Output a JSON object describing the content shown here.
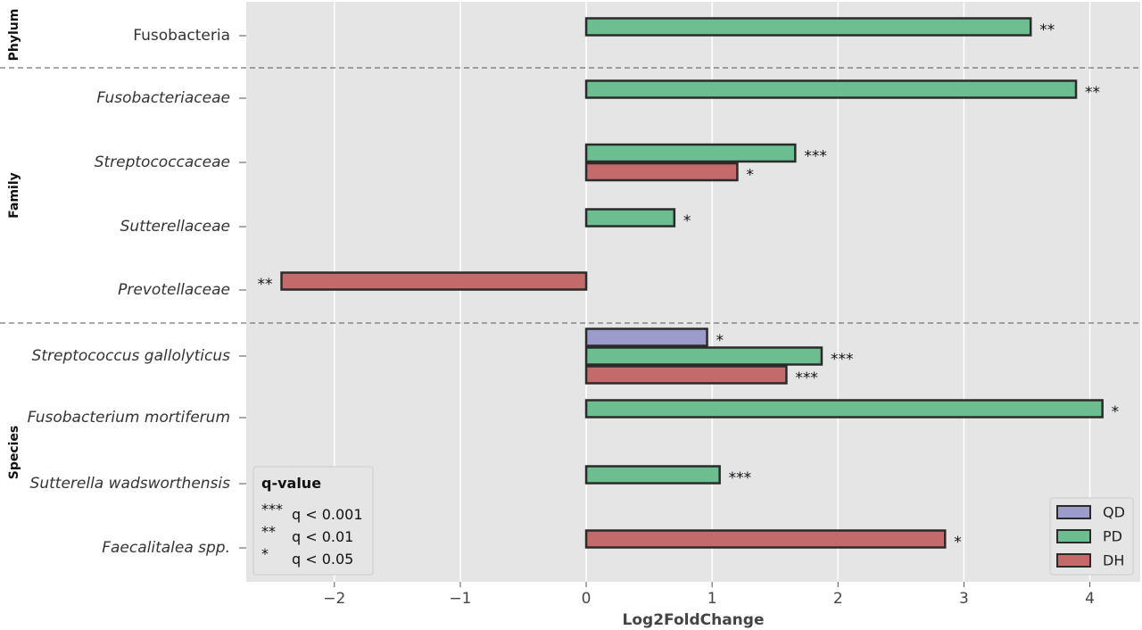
{
  "chart_data": {
    "type": "bar",
    "orientation": "horizontal",
    "xlabel": "Log2FoldChange",
    "xlim": [
      -2.7,
      4.4
    ],
    "xticks": [
      -2,
      -1,
      0,
      1,
      2,
      3,
      4
    ],
    "xtick_labels": [
      "−2",
      "−1",
      "0",
      "1",
      "2",
      "3",
      "4"
    ],
    "grid": true,
    "legend_position": "bottom-right",
    "series": [
      {
        "name": "QD",
        "color": "#9b9bcc"
      },
      {
        "name": "PD",
        "color": "#6cbd8f"
      },
      {
        "name": "DH",
        "color": "#c46a6a"
      }
    ],
    "groups": [
      {
        "name": "Phylum",
        "categories": [
          {
            "label": "Fusobacteria",
            "italic": false,
            "bars": [
              {
                "series": "PD",
                "value": 3.53,
                "sig": "**"
              }
            ]
          }
        ]
      },
      {
        "name": "Family",
        "categories": [
          {
            "label": "Fusobacteriaceae",
            "italic": true,
            "bars": [
              {
                "series": "PD",
                "value": 3.89,
                "sig": "**"
              }
            ]
          },
          {
            "label": "Streptococcaceae",
            "italic": true,
            "bars": [
              {
                "series": "PD",
                "value": 1.66,
                "sig": "***"
              },
              {
                "series": "DH",
                "value": 1.2,
                "sig": "*"
              }
            ]
          },
          {
            "label": "Sutterellaceae",
            "italic": true,
            "bars": [
              {
                "series": "PD",
                "value": 0.7,
                "sig": "*"
              }
            ]
          },
          {
            "label": "Prevotellaceae",
            "italic": true,
            "bars": [
              {
                "series": "DH",
                "value": -2.42,
                "sig": "**"
              }
            ]
          }
        ]
      },
      {
        "name": "Species",
        "categories": [
          {
            "label": "Streptococcus gallolyticus",
            "italic": true,
            "bars": [
              {
                "series": "QD",
                "value": 0.96,
                "sig": "*"
              },
              {
                "series": "PD",
                "value": 1.87,
                "sig": "***"
              },
              {
                "series": "DH",
                "value": 1.59,
                "sig": "***"
              }
            ]
          },
          {
            "label": "Fusobacterium mortiferum",
            "italic": true,
            "bars": [
              {
                "series": "PD",
                "value": 4.1,
                "sig": "*"
              }
            ]
          },
          {
            "label": "Sutterella wadsworthensis",
            "italic": true,
            "bars": [
              {
                "series": "PD",
                "value": 1.06,
                "sig": "***"
              }
            ]
          },
          {
            "label": "Faecalitalea spp.",
            "italic": true,
            "bars": [
              {
                "series": "DH",
                "value": 2.85,
                "sig": "*"
              }
            ]
          }
        ]
      }
    ],
    "qvalue_box": {
      "title": "q-value",
      "entries": [
        {
          "symbol": "***",
          "text": "q < 0.001"
        },
        {
          "symbol": "**",
          "text": "q < 0.01"
        },
        {
          "symbol": "*",
          "text": "q < 0.05"
        }
      ]
    }
  }
}
